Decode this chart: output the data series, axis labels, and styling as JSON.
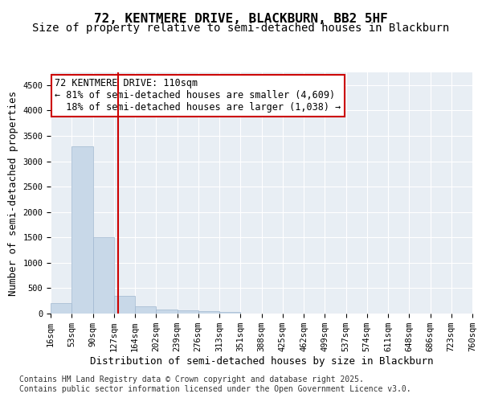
{
  "title_line1": "72, KENTMERE DRIVE, BLACKBURN, BB2 5HF",
  "title_line2": "Size of property relative to semi-detached houses in Blackburn",
  "xlabel": "Distribution of semi-detached houses by size in Blackburn",
  "ylabel": "Number of semi-detached properties",
  "bin_labels": [
    "16sqm",
    "53sqm",
    "90sqm",
    "127sqm",
    "164sqm",
    "202sqm",
    "239sqm",
    "276sqm",
    "313sqm",
    "351sqm",
    "388sqm",
    "425sqm",
    "462sqm",
    "499sqm",
    "537sqm",
    "574sqm",
    "611sqm",
    "648sqm",
    "686sqm",
    "723sqm",
    "760sqm"
  ],
  "bar_heights": [
    200,
    3300,
    1500,
    350,
    150,
    80,
    60,
    40,
    30,
    5,
    2,
    0,
    0,
    0,
    0,
    0,
    0,
    0,
    0,
    0
  ],
  "bar_color": "#c8d8e8",
  "bar_edge_color": "#a0b8d0",
  "vline_x": 2.7,
  "vline_color": "#cc0000",
  "annotation_text": "72 KENTMERE DRIVE: 110sqm\n← 81% of semi-detached houses are smaller (4,609)\n  18% of semi-detached houses are larger (1,038) →",
  "annotation_box_color": "#cc0000",
  "ylim": [
    0,
    4750
  ],
  "yticks": [
    0,
    500,
    1000,
    1500,
    2000,
    2500,
    3000,
    3500,
    4000,
    4500
  ],
  "background_color": "#e8eef4",
  "grid_color": "#ffffff",
  "footnote": "Contains HM Land Registry data © Crown copyright and database right 2025.\nContains public sector information licensed under the Open Government Licence v3.0.",
  "title_fontsize": 11.5,
  "subtitle_fontsize": 10,
  "label_fontsize": 9,
  "tick_fontsize": 7.5,
  "annotation_fontsize": 8.5,
  "footnote_fontsize": 7
}
